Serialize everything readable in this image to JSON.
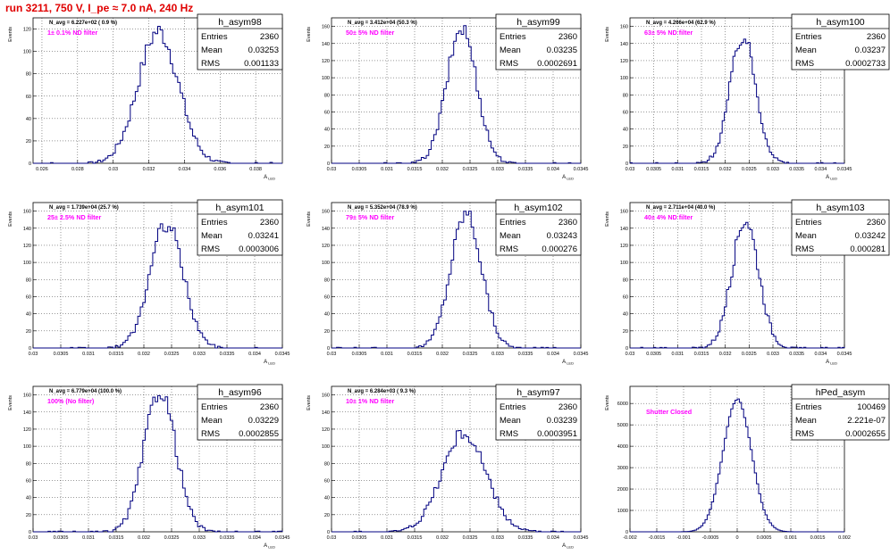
{
  "page_title": "run 3211,   750 V, I_pe ≈ 7.0 nA, 240 Hz",
  "colors": {
    "hist": "#000080",
    "grid": "#000000",
    "label": "#ff00ff",
    "title": "#e00000"
  },
  "chart_data": [
    {
      "type": "bar",
      "name": "h_asym98",
      "ylabel": "Events",
      "xlabel": "A_LED",
      "xlim": [
        0.0255,
        0.0395
      ],
      "ylim": [
        0,
        130
      ],
      "xticks": [
        "0.026",
        "0.028",
        "0.03",
        "0.032",
        "0.034",
        "0.036",
        "0.038"
      ],
      "xtick_values": [
        0.026,
        0.028,
        0.03,
        0.032,
        0.034,
        0.036,
        0.038
      ],
      "yticks": [
        0,
        20,
        40,
        60,
        80,
        100,
        120
      ],
      "stats": {
        "Entries": "2360",
        "Mean": "0.03253",
        "RMS": "0.001133"
      },
      "navg": "N_avg = 6.227e+02 ( 0.9 %)",
      "filter": "1± 0.1% ND filter",
      "peak_value": 0.03253,
      "peak_count": 118,
      "width": 0.001133
    },
    {
      "type": "bar",
      "name": "h_asym99",
      "ylabel": "Events",
      "xlabel": "A_LED",
      "xlim": [
        0.03,
        0.0345
      ],
      "ylim": [
        0,
        170
      ],
      "xticks": [
        "0.03",
        "0.0305",
        "0.031",
        "0.0315",
        "0.032",
        "0.0325",
        "0.033",
        "0.0335",
        "0.034",
        "0.0345"
      ],
      "xtick_values": [
        0.03,
        0.0305,
        0.031,
        0.0315,
        0.032,
        0.0325,
        0.033,
        0.0335,
        0.034,
        0.0345
      ],
      "yticks": [
        0,
        20,
        40,
        60,
        80,
        100,
        120,
        140,
        160
      ],
      "stats": {
        "Entries": "2360",
        "Mean": "0.03235",
        "RMS": "0.0002691"
      },
      "navg": "N_avg = 3.412e+04 (50.3 %)",
      "filter": "50± 5% ND filter",
      "peak_value": 0.03235,
      "peak_count": 158,
      "width": 0.0002691
    },
    {
      "type": "bar",
      "name": "h_asym100",
      "ylabel": "Events",
      "xlabel": "A_LED",
      "xlim": [
        0.03,
        0.0345
      ],
      "ylim": [
        0,
        170
      ],
      "xticks": [
        "0.03",
        "0.0305",
        "0.031",
        "0.0315",
        "0.032",
        "0.0325",
        "0.033",
        "0.0335",
        "0.034",
        "0.0345"
      ],
      "xtick_values": [
        0.03,
        0.0305,
        0.031,
        0.0315,
        0.032,
        0.0325,
        0.033,
        0.0335,
        0.034,
        0.0345
      ],
      "yticks": [
        0,
        20,
        40,
        60,
        80,
        100,
        120,
        140,
        160
      ],
      "stats": {
        "Entries": "2360",
        "Mean": "0.03237",
        "RMS": "0.0002733"
      },
      "navg": "N_avg = 4.266e+04 (62.9 %)",
      "filter": "63± 5% ND filter",
      "peak_value": 0.03237,
      "peak_count": 148,
      "width": 0.0002733
    },
    {
      "type": "bar",
      "name": "h_asym101",
      "ylabel": "Events",
      "xlabel": "A_LED",
      "xlim": [
        0.03,
        0.0345
      ],
      "ylim": [
        0,
        170
      ],
      "xticks": [
        "0.03",
        "0.0305",
        "0.031",
        "0.0315",
        "0.032",
        "0.0325",
        "0.033",
        "0.0335",
        "0.034",
        "0.0345"
      ],
      "xtick_values": [
        0.03,
        0.0305,
        0.031,
        0.0315,
        0.032,
        0.0325,
        0.033,
        0.0335,
        0.034,
        0.0345
      ],
      "yticks": [
        0,
        20,
        40,
        60,
        80,
        100,
        120,
        140,
        160
      ],
      "stats": {
        "Entries": "2360",
        "Mean": "0.03241",
        "RMS": "0.0003006"
      },
      "navg": "N_avg = 1.739e+04 (25.7 %)",
      "filter": "25± 2.5% ND filter",
      "peak_value": 0.03241,
      "peak_count": 145,
      "width": 0.0003006
    },
    {
      "type": "bar",
      "name": "h_asym102",
      "ylabel": "Events",
      "xlabel": "A_LED",
      "xlim": [
        0.03,
        0.0345
      ],
      "ylim": [
        0,
        170
      ],
      "xticks": [
        "0.03",
        "0.0305",
        "0.031",
        "0.0315",
        "0.032",
        "0.0325",
        "0.033",
        "0.0335",
        "0.034",
        "0.0345"
      ],
      "xtick_values": [
        0.03,
        0.0305,
        0.031,
        0.0315,
        0.032,
        0.0325,
        0.033,
        0.0335,
        0.034,
        0.0345
      ],
      "yticks": [
        0,
        20,
        40,
        60,
        80,
        100,
        120,
        140,
        160
      ],
      "stats": {
        "Entries": "2360",
        "Mean": "0.03243",
        "RMS": "0.000276"
      },
      "navg": "N_avg = 5.352e+04 (78.9 %)",
      "filter": "79± 5% ND filter",
      "peak_value": 0.03243,
      "peak_count": 158,
      "width": 0.000276
    },
    {
      "type": "bar",
      "name": "h_asym103",
      "ylabel": "Events",
      "xlabel": "A_LED",
      "xlim": [
        0.03,
        0.0345
      ],
      "ylim": [
        0,
        170
      ],
      "xticks": [
        "0.03",
        "0.0305",
        "0.031",
        "0.0315",
        "0.032",
        "0.0325",
        "0.033",
        "0.0335",
        "0.034",
        "0.0345"
      ],
      "xtick_values": [
        0.03,
        0.0305,
        0.031,
        0.0315,
        0.032,
        0.0325,
        0.033,
        0.0335,
        0.034,
        0.0345
      ],
      "yticks": [
        0,
        20,
        40,
        60,
        80,
        100,
        120,
        140,
        160
      ],
      "stats": {
        "Entries": "2360",
        "Mean": "0.03242",
        "RMS": "0.000281"
      },
      "navg": "N_avg = 2.711e+04 (40.0 %)",
      "filter": "40± 4% ND filter",
      "peak_value": 0.03242,
      "peak_count": 150,
      "width": 0.000281
    },
    {
      "type": "bar",
      "name": "h_asym96",
      "ylabel": "Events",
      "xlabel": "A_LED",
      "xlim": [
        0.03,
        0.0345
      ],
      "ylim": [
        0,
        170
      ],
      "xticks": [
        "0.03",
        "0.0305",
        "0.031",
        "0.0315",
        "0.032",
        "0.0325",
        "0.033",
        "0.0335",
        "0.034",
        "0.0345"
      ],
      "xtick_values": [
        0.03,
        0.0305,
        0.031,
        0.0315,
        0.032,
        0.0325,
        0.033,
        0.0335,
        0.034,
        0.0345
      ],
      "yticks": [
        0,
        20,
        40,
        60,
        80,
        100,
        120,
        140,
        160
      ],
      "stats": {
        "Entries": "2360",
        "Mean": "0.03229",
        "RMS": "0.0002855"
      },
      "navg": "N_avg = 6.779e+04 (100.0 %)",
      "filter": "100% (No filter)",
      "peak_value": 0.03229,
      "peak_count": 165,
      "width": 0.0002855
    },
    {
      "type": "bar",
      "name": "h_asym97",
      "ylabel": "Events",
      "xlabel": "A_LED",
      "xlim": [
        0.03,
        0.0345
      ],
      "ylim": [
        0,
        170
      ],
      "xticks": [
        "0.03",
        "0.0305",
        "0.031",
        "0.0315",
        "0.032",
        "0.0325",
        "0.033",
        "0.0335",
        "0.034",
        "0.0345"
      ],
      "xtick_values": [
        0.03,
        0.0305,
        0.031,
        0.0315,
        0.032,
        0.0325,
        0.033,
        0.0335,
        0.034,
        0.0345
      ],
      "yticks": [
        0,
        20,
        40,
        60,
        80,
        100,
        120,
        140,
        160
      ],
      "stats": {
        "Entries": "2360",
        "Mean": "0.03239",
        "RMS": "0.0003951"
      },
      "navg": "N_avg = 6.284e+03 ( 9.3 %)",
      "filter": "10± 1% ND filter",
      "peak_value": 0.03239,
      "peak_count": 115,
      "width": 0.0003951
    },
    {
      "type": "bar",
      "name": "hPed_asym",
      "ylabel": "Events",
      "xlabel": "",
      "xlim": [
        -0.002,
        0.002
      ],
      "ylim": [
        0,
        6800
      ],
      "xticks": [
        "-0.002",
        "-0.0015",
        "-0.001",
        "-0.0005",
        "0",
        "0.0005",
        "0.001",
        "0.0015",
        "0.002"
      ],
      "xtick_values": [
        -0.002,
        -0.0015,
        -0.001,
        -0.0005,
        0,
        0.0005,
        0.001,
        0.0015,
        0.002
      ],
      "yticks": [
        0,
        1000,
        2000,
        3000,
        4000,
        5000,
        6000
      ],
      "stats": {
        "Entries": "100469",
        "Mean": "2.221e-07",
        "RMS": "0.0002655"
      },
      "navg": "",
      "filter": "Shutter Closed",
      "peak_value": 0.0,
      "peak_count": 6200,
      "width": 0.0002655
    }
  ]
}
